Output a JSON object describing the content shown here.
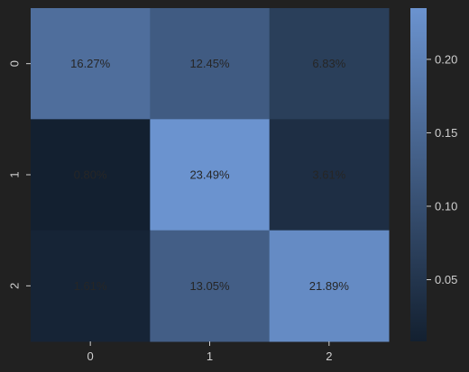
{
  "chart_data": {
    "type": "heatmap",
    "title": "",
    "xlabel": "",
    "ylabel": "",
    "x_tick_labels": [
      "0",
      "1",
      "2"
    ],
    "y_tick_labels": [
      "0",
      "1",
      "2"
    ],
    "values": [
      [
        0.1627,
        0.1245,
        0.0683
      ],
      [
        0.008,
        0.2349,
        0.0361
      ],
      [
        0.0161,
        0.1305,
        0.2189
      ]
    ],
    "cell_labels": [
      [
        "16.27%",
        "12.45%",
        "6.83%"
      ],
      [
        "0.80%",
        "23.49%",
        "3.61%"
      ],
      [
        "1.61%",
        "13.05%",
        "21.89%"
      ]
    ],
    "colorbar": {
      "range": [
        0.008,
        0.2349
      ],
      "ticks": [
        0.05,
        0.1,
        0.15,
        0.2
      ],
      "tick_labels": [
        "0.05",
        "0.10",
        "0.15",
        "0.20"
      ]
    },
    "colormap": {
      "low": "#132030",
      "high": "#6b93cf"
    },
    "background": "#212121"
  }
}
